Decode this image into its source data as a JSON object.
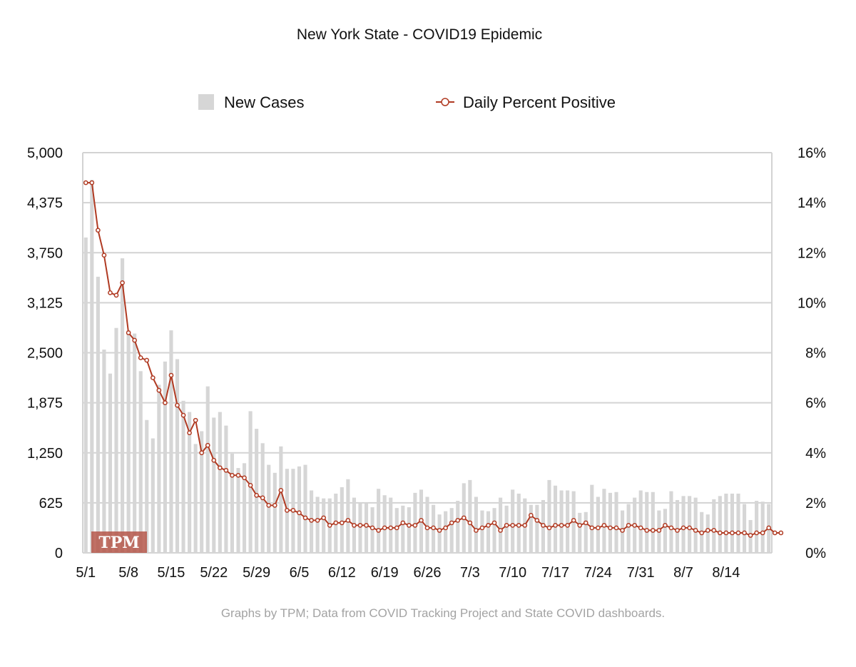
{
  "chart_data": {
    "type": "bar+line",
    "title": "New York State - COVID19 Epidemic",
    "caption": "Graphs by TPM; Data from COVID Tracking Project and State COVID dashboards.",
    "watermark": "TPM",
    "legend": {
      "position": "top",
      "items": [
        {
          "name": "New Cases",
          "kind": "bar"
        },
        {
          "name": "Daily Percent Positive",
          "kind": "line-marker"
        }
      ]
    },
    "x_start": "5/1",
    "x_ticks": [
      "5/1",
      "5/8",
      "5/15",
      "5/22",
      "5/29",
      "6/5",
      "6/12",
      "6/19",
      "6/26",
      "7/3",
      "7/10",
      "7/17",
      "7/24",
      "7/31",
      "8/7",
      "8/14"
    ],
    "y_left": {
      "ticks": [
        "0",
        "625",
        "1,250",
        "1,875",
        "2,500",
        "3,125",
        "3,750",
        "4,375",
        "5,000"
      ],
      "range": [
        0,
        5000
      ]
    },
    "y_right": {
      "ticks": [
        "0%",
        "2%",
        "4%",
        "6%",
        "8%",
        "10%",
        "12%",
        "14%",
        "16%"
      ],
      "range": [
        0,
        16
      ]
    },
    "series": [
      {
        "name": "New Cases",
        "axis": "left",
        "values": [
          3940,
          4660,
          3450,
          2540,
          2240,
          2810,
          3680,
          2780,
          2740,
          2270,
          1660,
          1430,
          2100,
          2390,
          2780,
          2420,
          1900,
          1760,
          1360,
          1520,
          2080,
          1690,
          1760,
          1590,
          1240,
          1060,
          1120,
          1770,
          1550,
          1370,
          1100,
          1000,
          1330,
          1050,
          1050,
          1080,
          1100,
          780,
          700,
          680,
          680,
          740,
          820,
          920,
          690,
          620,
          620,
          570,
          800,
          720,
          690,
          560,
          590,
          570,
          750,
          790,
          700,
          600,
          480,
          520,
          560,
          650,
          870,
          910,
          700,
          530,
          520,
          560,
          690,
          590,
          790,
          740,
          680,
          600,
          600,
          660,
          910,
          840,
          780,
          780,
          770,
          500,
          510,
          850,
          700,
          800,
          750,
          760,
          530,
          610,
          690,
          780,
          760,
          760,
          530,
          550,
          770,
          660,
          710,
          710,
          690,
          510,
          480,
          670,
          710,
          740,
          740,
          740,
          610,
          410,
          650,
          640,
          610
        ],
        "color": "#d6d6d6"
      },
      {
        "name": "Daily Percent Positive",
        "axis": "right",
        "values": [
          14.8,
          14.8,
          12.9,
          11.9,
          10.4,
          10.3,
          10.8,
          8.8,
          8.5,
          7.8,
          7.7,
          7.0,
          6.5,
          6.0,
          7.1,
          5.9,
          5.5,
          4.8,
          5.3,
          4.0,
          4.3,
          3.7,
          3.4,
          3.3,
          3.1,
          3.1,
          3.0,
          2.7,
          2.3,
          2.2,
          1.9,
          1.9,
          2.5,
          1.7,
          1.7,
          1.6,
          1.4,
          1.3,
          1.3,
          1.4,
          1.1,
          1.2,
          1.2,
          1.3,
          1.1,
          1.1,
          1.1,
          1.0,
          0.9,
          1.0,
          1.0,
          1.0,
          1.2,
          1.1,
          1.1,
          1.3,
          1.0,
          1.0,
          0.9,
          1.0,
          1.2,
          1.3,
          1.4,
          1.2,
          0.9,
          1.0,
          1.1,
          1.2,
          0.9,
          1.1,
          1.1,
          1.1,
          1.1,
          1.5,
          1.3,
          1.1,
          1.0,
          1.1,
          1.1,
          1.1,
          1.3,
          1.1,
          1.2,
          1.0,
          1.0,
          1.1,
          1.0,
          1.0,
          0.9,
          1.1,
          1.1,
          1.0,
          0.9,
          0.9,
          0.9,
          1.1,
          1.0,
          0.9,
          1.0,
          1.0,
          0.9,
          0.8,
          0.9,
          0.9,
          0.8,
          0.8,
          0.8,
          0.8,
          0.8,
          0.7,
          0.8,
          0.8,
          1.0,
          0.8,
          0.8
        ],
        "color": "#b03a22"
      }
    ]
  }
}
